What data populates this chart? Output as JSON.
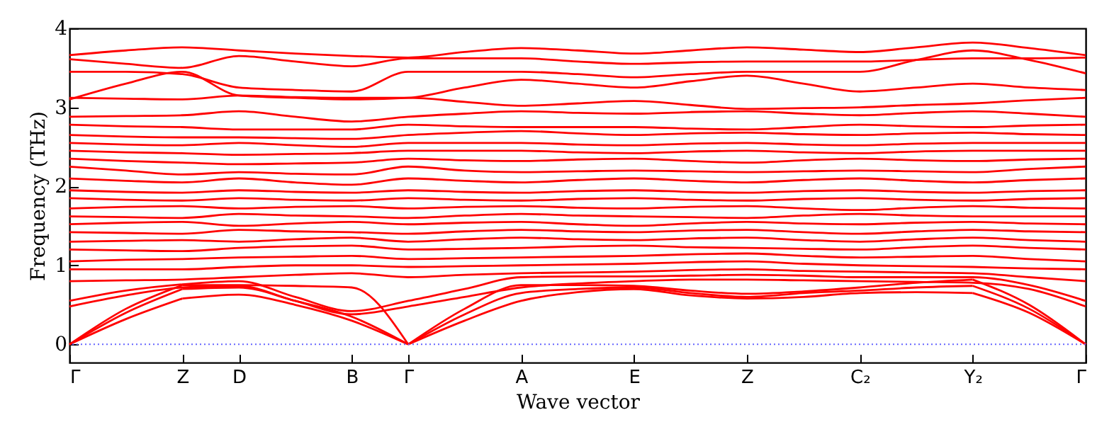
{
  "chart_data": {
    "type": "line",
    "xlabel": "Wave vector",
    "ylabel": "Frequency (THz)",
    "categories": [
      "Γ",
      null,
      "Z",
      "D",
      null,
      "B",
      "Γ",
      null,
      "A",
      null,
      "E",
      null,
      "Z",
      null,
      "C₂",
      null,
      "Y₂",
      null,
      "Γ"
    ],
    "ylim": [
      -0.23,
      4
    ],
    "yticks": [
      0,
      1,
      2,
      3,
      4
    ],
    "ref_lines": [
      {
        "axis": "y",
        "value": 0,
        "color": "#6666ff",
        "line_style": "dotted"
      }
    ],
    "series": [
      {
        "color": "#ff0000",
        "values": [
          0,
          0.32,
          0.58,
          null,
          null,
          null,
          null,
          null,
          null,
          null,
          null,
          null,
          null,
          null,
          null,
          null,
          null,
          null,
          null
        ]
      },
      {
        "color": "#ff0000",
        "values": [
          null,
          null,
          0.58,
          0.63,
          0.5,
          0.3,
          0,
          null,
          null,
          null,
          null,
          null,
          null,
          null,
          null,
          null,
          null,
          null,
          null
        ]
      },
      {
        "color": "#ff0000",
        "values": [
          null,
          null,
          null,
          null,
          null,
          null,
          0,
          0.3,
          0.55,
          0.66,
          0.7,
          0.62,
          0.58,
          0.6,
          0.65,
          0.66,
          0.65,
          null,
          null
        ]
      },
      {
        "color": "#ff0000",
        "values": [
          null,
          null,
          null,
          null,
          null,
          null,
          null,
          null,
          null,
          null,
          null,
          null,
          null,
          null,
          null,
          null,
          0.65,
          0.4,
          0
        ]
      },
      {
        "color": "#ff0000",
        "values": [
          0,
          0.4,
          0.7,
          null,
          null,
          null,
          null,
          null,
          null,
          null,
          null,
          null,
          null,
          null,
          null,
          null,
          null,
          null,
          null
        ]
      },
      {
        "color": "#ff0000",
        "values": [
          null,
          null,
          0.7,
          0.72,
          0.55,
          0.35,
          0,
          null,
          null,
          null,
          null,
          null,
          null,
          null,
          null,
          null,
          null,
          null,
          null
        ]
      },
      {
        "color": "#ff0000",
        "values": [
          null,
          null,
          null,
          null,
          null,
          null,
          0,
          0.38,
          0.65,
          0.7,
          0.72,
          0.65,
          0.6,
          0.65,
          0.68,
          0.72,
          0.74,
          null,
          null
        ]
      },
      {
        "color": "#ff0000",
        "values": [
          null,
          null,
          null,
          null,
          null,
          null,
          null,
          null,
          null,
          null,
          null,
          null,
          null,
          null,
          null,
          null,
          0.74,
          0.45,
          0
        ]
      },
      {
        "color": "#ff0000",
        "values": [
          0,
          0.45,
          0.75,
          null,
          null,
          null,
          null,
          null,
          null,
          null,
          null,
          null,
          null,
          null,
          null,
          null,
          null,
          null,
          null
        ]
      },
      {
        "color": "#ff0000",
        "values": [
          null,
          null,
          0.75,
          0.75,
          0.74,
          0.72,
          0,
          null,
          null,
          null,
          null,
          null,
          null,
          null,
          null,
          null,
          null,
          null,
          null
        ]
      },
      {
        "color": "#ff0000",
        "values": [
          null,
          null,
          null,
          null,
          null,
          null,
          0,
          0.45,
          0.75,
          0.75,
          0.74,
          0.68,
          0.64,
          0.67,
          0.72,
          0.78,
          0.82,
          null,
          null
        ]
      },
      {
        "color": "#ff0000",
        "values": [
          null,
          null,
          null,
          null,
          null,
          null,
          null,
          null,
          null,
          null,
          null,
          null,
          null,
          null,
          null,
          null,
          0.82,
          0.5,
          0
        ]
      },
      {
        "color": "#ff0000",
        "values": [
          0.48,
          0.62,
          0.72,
          0.74,
          0.55,
          0.38,
          0.48,
          0.6,
          0.72,
          0.77,
          0.8,
          0.82,
          0.82,
          0.81,
          0.8,
          0.79,
          0.78,
          0.7,
          0.48
        ]
      },
      {
        "color": "#ff0000",
        "values": [
          0.55,
          0.68,
          0.76,
          0.8,
          0.6,
          0.42,
          0.55,
          0.7,
          0.85,
          0.86,
          0.86,
          0.87,
          0.88,
          0.87,
          0.85,
          0.85,
          0.85,
          0.75,
          0.55
        ]
      },
      {
        "color": "#ff0000",
        "values": [
          0.8,
          0.81,
          0.82,
          0.85,
          0.88,
          0.9,
          0.85,
          0.88,
          0.9,
          0.91,
          0.92,
          0.94,
          0.95,
          0.93,
          0.92,
          0.91,
          0.9,
          0.85,
          0.8
        ]
      },
      {
        "color": "#ff0000",
        "values": [
          0.95,
          0.95,
          0.95,
          0.98,
          1,
          1,
          0.98,
          0.99,
          1,
          1.01,
          1.02,
          1.04,
          1.05,
          1.02,
          1,
          0.99,
          0.98,
          0.96,
          0.95
        ]
      },
      {
        "color": "#ff0000",
        "values": [
          1.05,
          1.07,
          1.08,
          1.1,
          1.11,
          1.12,
          1.08,
          1.09,
          1.1,
          1.11,
          1.12,
          1.14,
          1.15,
          1.12,
          1.1,
          1.11,
          1.12,
          1.08,
          1.05
        ]
      },
      {
        "color": "#ff0000",
        "values": [
          1.2,
          1.19,
          1.18,
          1.22,
          1.24,
          1.25,
          1.2,
          1.21,
          1.22,
          1.24,
          1.25,
          1.23,
          1.22,
          1.21,
          1.2,
          1.23,
          1.25,
          1.22,
          1.2
        ]
      },
      {
        "color": "#ff0000",
        "values": [
          1.3,
          1.31,
          1.32,
          1.3,
          1.33,
          1.35,
          1.3,
          1.33,
          1.35,
          1.33,
          1.32,
          1.34,
          1.35,
          1.32,
          1.3,
          1.33,
          1.35,
          1.32,
          1.3
        ]
      },
      {
        "color": "#ff0000",
        "values": [
          1.42,
          1.41,
          1.4,
          1.45,
          1.43,
          1.42,
          1.4,
          1.43,
          1.45,
          1.43,
          1.42,
          1.44,
          1.45,
          1.42,
          1.4,
          1.43,
          1.45,
          1.43,
          1.42
        ]
      },
      {
        "color": "#ff0000",
        "values": [
          1.52,
          1.54,
          1.55,
          1.5,
          1.53,
          1.55,
          1.52,
          1.54,
          1.55,
          1.52,
          1.5,
          1.53,
          1.55,
          1.53,
          1.52,
          1.54,
          1.55,
          1.53,
          1.52
        ]
      },
      {
        "color": "#ff0000",
        "values": [
          1.62,
          1.61,
          1.6,
          1.65,
          1.63,
          1.62,
          1.6,
          1.63,
          1.65,
          1.63,
          1.62,
          1.61,
          1.6,
          1.63,
          1.65,
          1.63,
          1.62,
          1.62,
          1.62
        ]
      },
      {
        "color": "#ff0000",
        "values": [
          1.72,
          1.74,
          1.75,
          1.72,
          1.74,
          1.75,
          1.72,
          1.74,
          1.75,
          1.73,
          1.72,
          1.74,
          1.75,
          1.72,
          1.7,
          1.73,
          1.75,
          1.73,
          1.72
        ]
      },
      {
        "color": "#ff0000",
        "values": [
          1.85,
          1.83,
          1.82,
          1.85,
          1.83,
          1.82,
          1.85,
          1.83,
          1.82,
          1.84,
          1.85,
          1.83,
          1.82,
          1.84,
          1.85,
          1.83,
          1.82,
          1.84,
          1.85
        ]
      },
      {
        "color": "#ff0000",
        "values": [
          1.95,
          1.93,
          1.92,
          1.95,
          1.93,
          1.92,
          1.95,
          1.93,
          1.92,
          1.94,
          1.95,
          1.93,
          1.92,
          1.94,
          1.95,
          1.93,
          1.92,
          1.94,
          1.95
        ]
      },
      {
        "color": "#ff0000",
        "values": [
          2.1,
          2.07,
          2.05,
          2.1,
          2.05,
          2.02,
          2.1,
          2.07,
          2.05,
          2.08,
          2.1,
          2.07,
          2.05,
          2.08,
          2.1,
          2.07,
          2.05,
          2.08,
          2.1
        ]
      },
      {
        "color": "#ff0000",
        "values": [
          2.25,
          2.2,
          2.15,
          2.18,
          2.16,
          2.15,
          2.25,
          2.2,
          2.18,
          2.19,
          2.2,
          2.19,
          2.18,
          2.19,
          2.2,
          2.19,
          2.18,
          2.22,
          2.25
        ]
      },
      {
        "color": "#ff0000",
        "values": [
          2.35,
          2.32,
          2.3,
          2.28,
          2.29,
          2.3,
          2.35,
          2.33,
          2.32,
          2.34,
          2.35,
          2.32,
          2.3,
          2.33,
          2.35,
          2.33,
          2.32,
          2.34,
          2.35
        ]
      },
      {
        "color": "#ff0000",
        "values": [
          2.45,
          2.43,
          2.42,
          2.4,
          2.41,
          2.42,
          2.45,
          2.45,
          2.45,
          2.43,
          2.42,
          2.44,
          2.45,
          2.43,
          2.42,
          2.44,
          2.45,
          2.45,
          2.45
        ]
      },
      {
        "color": "#ff0000",
        "values": [
          2.55,
          2.53,
          2.52,
          2.55,
          2.52,
          2.5,
          2.55,
          2.55,
          2.55,
          2.53,
          2.52,
          2.54,
          2.55,
          2.53,
          2.52,
          2.54,
          2.55,
          2.55,
          2.55
        ]
      },
      {
        "color": "#ff0000",
        "values": [
          2.65,
          2.63,
          2.62,
          2.62,
          2.61,
          2.6,
          2.65,
          2.68,
          2.7,
          2.67,
          2.65,
          2.67,
          2.68,
          2.66,
          2.65,
          2.67,
          2.68,
          2.66,
          2.65
        ]
      },
      {
        "color": "#ff0000",
        "values": [
          2.78,
          2.76,
          2.75,
          2.72,
          2.72,
          2.72,
          2.78,
          2.76,
          2.75,
          2.75,
          2.75,
          2.73,
          2.72,
          2.75,
          2.78,
          2.76,
          2.75,
          2.77,
          2.78
        ]
      },
      {
        "color": "#ff0000",
        "values": [
          2.88,
          2.89,
          2.9,
          2.95,
          2.88,
          2.82,
          2.88,
          2.92,
          2.95,
          2.93,
          2.92,
          2.94,
          2.95,
          2.92,
          2.9,
          2.93,
          2.95,
          2.92,
          2.88
        ]
      },
      {
        "color": "#ff0000",
        "values": [
          3.12,
          3.11,
          3.1,
          3.15,
          3.13,
          3.12,
          3.12,
          3.07,
          3.02,
          3.05,
          3.08,
          3.03,
          2.98,
          2.99,
          3,
          3.03,
          3.05,
          3.09,
          3.12
        ]
      },
      {
        "color": "#ff0000",
        "values": [
          3.1,
          3.3,
          3.45,
          3.15,
          3.12,
          3.1,
          3.12,
          3.25,
          3.35,
          3.3,
          3.25,
          3.33,
          3.4,
          3.3,
          3.2,
          3.25,
          3.3,
          3.25,
          3.22
        ]
      },
      {
        "color": "#ff0000",
        "values": [
          3.45,
          3.45,
          3.42,
          3.25,
          3.22,
          3.2,
          3.45,
          3.45,
          3.45,
          3.42,
          3.38,
          3.42,
          3.45,
          3.45,
          3.45,
          3.6,
          3.72,
          3.6,
          3.43
        ]
      },
      {
        "color": "#ff0000",
        "values": [
          3.61,
          3.55,
          3.5,
          3.65,
          3.58,
          3.52,
          3.62,
          3.62,
          3.62,
          3.58,
          3.55,
          3.57,
          3.58,
          3.58,
          3.58,
          3.6,
          3.62,
          3.62,
          3.63
        ]
      },
      {
        "color": "#ff0000",
        "values": [
          3.66,
          3.72,
          3.76,
          3.72,
          3.68,
          3.65,
          3.63,
          3.7,
          3.75,
          3.72,
          3.68,
          3.72,
          3.76,
          3.73,
          3.7,
          3.76,
          3.82,
          3.75,
          3.66
        ]
      }
    ]
  }
}
